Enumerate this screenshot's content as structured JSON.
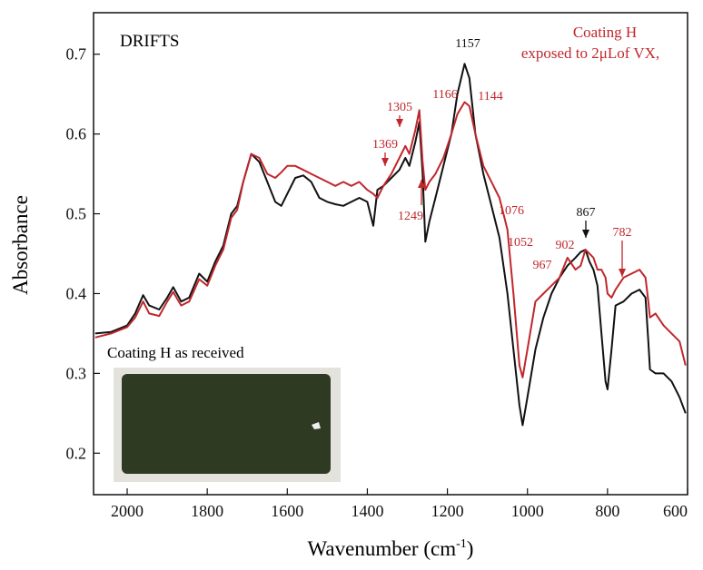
{
  "chart_data": {
    "type": "line",
    "x_label": "Wavenumber (cm",
    "x_label_sup": "-1",
    "x_label_end": ")",
    "y_label": "Absorbance",
    "annotations": [
      "DRIFTS",
      "Coating H",
      "exposed to 2μLof VX,",
      "Coating H as received"
    ],
    "xlim": [
      2084,
      600
    ],
    "ylim": [
      0.148,
      0.752
    ],
    "xticks": [
      2000,
      1800,
      1600,
      1400,
      1200,
      1000,
      800,
      600
    ],
    "yticks": [
      0.2,
      0.3,
      0.4,
      0.5,
      0.6,
      0.7
    ],
    "x": [
      2080,
      2040,
      2000,
      1980,
      1960,
      1945,
      1920,
      1900,
      1885,
      1865,
      1845,
      1820,
      1800,
      1780,
      1760,
      1740,
      1725,
      1710,
      1690,
      1670,
      1650,
      1630,
      1615,
      1600,
      1580,
      1560,
      1540,
      1520,
      1500,
      1480,
      1460,
      1440,
      1420,
      1400,
      1385,
      1375,
      1360,
      1340,
      1320,
      1305,
      1295,
      1280,
      1270,
      1262,
      1255,
      1245,
      1230,
      1210,
      1190,
      1175,
      1157,
      1145,
      1130,
      1110,
      1090,
      1070,
      1050,
      1035,
      1020,
      1012,
      1000,
      980,
      960,
      940,
      920,
      900,
      880,
      867,
      855,
      845,
      835,
      825,
      815,
      805,
      800,
      790,
      780,
      760,
      740,
      720,
      705,
      698,
      694,
      680,
      660,
      640,
      620,
      605
    ],
    "series": [
      {
        "color": "#111111",
        "values": [
          0.35,
          0.352,
          0.36,
          0.375,
          0.398,
          0.385,
          0.38,
          0.395,
          0.408,
          0.39,
          0.395,
          0.425,
          0.415,
          0.44,
          0.46,
          0.5,
          0.51,
          0.54,
          0.575,
          0.565,
          0.54,
          0.515,
          0.51,
          0.525,
          0.545,
          0.548,
          0.54,
          0.52,
          0.515,
          0.512,
          0.51,
          0.515,
          0.52,
          0.515,
          0.485,
          0.53,
          0.535,
          0.545,
          0.555,
          0.57,
          0.56,
          0.59,
          0.615,
          0.55,
          0.465,
          0.49,
          0.52,
          0.56,
          0.6,
          0.65,
          0.688,
          0.67,
          0.6,
          0.55,
          0.51,
          0.47,
          0.4,
          0.33,
          0.26,
          0.235,
          0.27,
          0.33,
          0.37,
          0.4,
          0.42,
          0.435,
          0.445,
          0.452,
          0.455,
          0.44,
          0.43,
          0.41,
          0.35,
          0.29,
          0.28,
          0.33,
          0.385,
          0.39,
          0.4,
          0.405,
          0.395,
          0.34,
          0.305,
          0.3,
          0.3,
          0.29,
          0.27,
          0.25
        ]
      },
      {
        "color": "#c0272d",
        "values": [
          0.345,
          0.35,
          0.358,
          0.37,
          0.39,
          0.375,
          0.372,
          0.39,
          0.402,
          0.385,
          0.39,
          0.418,
          0.41,
          0.435,
          0.455,
          0.495,
          0.505,
          0.54,
          0.575,
          0.57,
          0.55,
          0.545,
          0.552,
          0.56,
          0.56,
          0.555,
          0.55,
          0.545,
          0.54,
          0.535,
          0.54,
          0.535,
          0.54,
          0.53,
          0.525,
          0.52,
          0.535,
          0.55,
          0.57,
          0.585,
          0.575,
          0.605,
          0.63,
          0.565,
          0.53,
          0.54,
          0.55,
          0.57,
          0.6,
          0.625,
          0.64,
          0.635,
          0.6,
          0.56,
          0.54,
          0.52,
          0.48,
          0.4,
          0.31,
          0.295,
          0.33,
          0.39,
          0.4,
          0.41,
          0.42,
          0.445,
          0.43,
          0.435,
          0.455,
          0.45,
          0.445,
          0.43,
          0.43,
          0.42,
          0.4,
          0.395,
          0.405,
          0.42,
          0.425,
          0.43,
          0.42,
          0.39,
          0.37,
          0.375,
          0.36,
          0.35,
          0.34,
          0.31
        ]
      }
    ],
    "peak_labels": [
      {
        "value": 1157,
        "color": "#111111"
      },
      {
        "value": 1305,
        "color": "#c0272d"
      },
      {
        "value": 1166,
        "color": "#c0272d"
      },
      {
        "value": 1144,
        "color": "#c0272d"
      },
      {
        "value": 1369,
        "color": "#c0272d"
      },
      {
        "value": 1249,
        "color": "#c0272d"
      },
      {
        "value": 1076,
        "color": "#c0272d"
      },
      {
        "value": 1052,
        "color": "#c0272d"
      },
      {
        "value": 967,
        "color": "#c0272d"
      },
      {
        "value": 902,
        "color": "#c0272d"
      },
      {
        "value": 867,
        "color": "#111111"
      },
      {
        "value": 782,
        "color": "#c0272d"
      }
    ]
  }
}
